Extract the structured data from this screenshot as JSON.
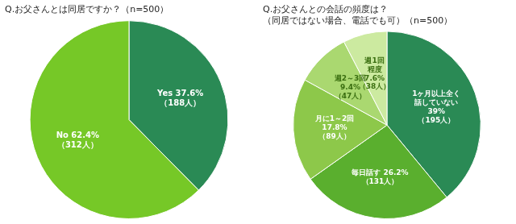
{
  "chart_data": [
    {
      "type": "pie",
      "title": "Q.お父さんとは同居ですか？（n=500）",
      "values": [
        37.6,
        62.4
      ],
      "value_labels": [
        "Yes 37.6%\n（188人）",
        "No 62.4%\n（312人）"
      ],
      "colors": [
        "#2a8a55",
        "#76c827"
      ],
      "data_labels": true,
      "legend": false
    },
    {
      "type": "pie",
      "title": "Q.お父さんとの会話の頻度は？\n（同居ではない場合、電話でも可）（n=500）",
      "values": [
        39.0,
        26.2,
        17.8,
        9.4,
        7.6
      ],
      "value_labels": [
        "1ヶ月以上全く\n話していない\n39%\n（195人）",
        "毎日話す 26.2%\n（131人）",
        "月に1～2回\n17.8%\n（89人）",
        "週2～3回\n9.4%\n（47人）",
        "週1回\n程度\n7.6%\n（38人）"
      ],
      "colors": [
        "#2a8a55",
        "#5aaf2e",
        "#8dc84a",
        "#aad870",
        "#cceaa0"
      ],
      "data_labels": true,
      "legend": false
    }
  ]
}
